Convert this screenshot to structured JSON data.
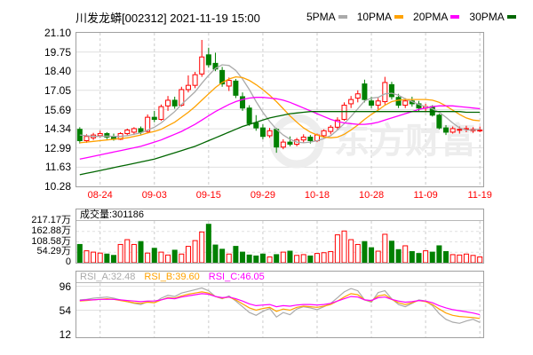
{
  "header": {
    "title": "川发龙蟒[002312] 2021-11-19 15:00",
    "legend": [
      {
        "label": "5PMA",
        "color": "#aaaaaa"
      },
      {
        "label": "10PMA",
        "color": "#ffa200"
      },
      {
        "label": "20PMA",
        "color": "#ff00ff"
      },
      {
        "label": "30PMA",
        "color": "#006600"
      }
    ]
  },
  "volume_panel": {
    "label": "成交量:301186"
  },
  "rsi_panel": {
    "labels": [
      {
        "label": "RSI_A:32.48",
        "color": "#aaaaaa"
      },
      {
        "label": "RSI_B:39.60",
        "color": "#ffa200"
      },
      {
        "label": "RSI_C:46.05",
        "color": "#ff00ff"
      }
    ]
  },
  "watermark": "东方财富",
  "colors": {
    "up": "#ff0000",
    "down": "#008000",
    "grid": "#e0e0e0",
    "vgrid": "#cccccc",
    "border": "#a0a0a0",
    "date_text": "#ff0000",
    "axis_text": "#000000",
    "watermark": "#ededed",
    "background": "#ffffff"
  },
  "chart_data": {
    "type": "candlestick",
    "title": "川发龙蟒[002312] 2021-11-19 15:00",
    "timestamp": "2021-11-19 15:00",
    "x_ticks": {
      "indices": [
        3,
        11,
        19,
        27,
        35,
        43,
        51,
        59
      ],
      "labels": [
        "08-24",
        "09-03",
        "09-15",
        "09-29",
        "10-18",
        "10-28",
        "11-09",
        "11-19"
      ]
    },
    "price_axis": {
      "min": 10.28,
      "max": 21.1,
      "labels": [
        "21.10",
        "19.75",
        "18.40",
        "17.05",
        "15.69",
        "14.34",
        "12.99",
        "11.63",
        "10.28"
      ]
    },
    "candles": [
      [
        14.3,
        14.45,
        13.3,
        13.5
      ],
      [
        13.5,
        13.95,
        13.35,
        13.8
      ],
      [
        13.7,
        14.05,
        13.55,
        13.9
      ],
      [
        13.85,
        14.2,
        13.7,
        14.0
      ],
      [
        14.0,
        14.1,
        13.6,
        13.75
      ],
      [
        13.75,
        14.0,
        13.5,
        13.6
      ],
      [
        13.6,
        14.1,
        13.55,
        14.0
      ],
      [
        14.0,
        14.35,
        13.85,
        14.25
      ],
      [
        14.1,
        14.45,
        13.9,
        14.35
      ],
      [
        14.35,
        14.5,
        13.95,
        14.1
      ],
      [
        14.15,
        15.35,
        14.0,
        15.15
      ],
      [
        15.15,
        15.6,
        14.8,
        15.0
      ],
      [
        15.0,
        16.05,
        14.9,
        15.9
      ],
      [
        15.95,
        16.65,
        15.6,
        16.35
      ],
      [
        16.35,
        16.6,
        15.75,
        15.95
      ],
      [
        16.0,
        17.3,
        15.9,
        17.1
      ],
      [
        17.1,
        18.1,
        16.9,
        17.4
      ],
      [
        17.4,
        18.35,
        17.2,
        18.15
      ],
      [
        18.2,
        20.6,
        18.0,
        19.4
      ],
      [
        19.55,
        20.05,
        18.65,
        18.85
      ],
      [
        18.95,
        19.7,
        18.4,
        18.55
      ],
      [
        18.45,
        18.7,
        17.3,
        17.5
      ],
      [
        17.35,
        17.95,
        17.0,
        17.75
      ],
      [
        17.7,
        17.85,
        16.5,
        16.7
      ],
      [
        16.6,
        16.9,
        15.6,
        15.8
      ],
      [
        15.8,
        16.0,
        14.55,
        14.7
      ],
      [
        14.75,
        15.3,
        14.2,
        14.4
      ],
      [
        14.4,
        14.65,
        13.6,
        13.8
      ],
      [
        13.85,
        14.4,
        13.7,
        14.2
      ],
      [
        14.3,
        14.4,
        12.65,
        13.05
      ],
      [
        13.05,
        13.6,
        12.9,
        13.4
      ],
      [
        13.4,
        13.8,
        13.1,
        13.25
      ],
      [
        13.25,
        13.7,
        13.1,
        13.55
      ],
      [
        13.55,
        13.95,
        13.35,
        13.75
      ],
      [
        13.75,
        13.9,
        13.3,
        13.5
      ],
      [
        13.5,
        14.0,
        13.4,
        13.9
      ],
      [
        13.85,
        14.3,
        13.7,
        14.2
      ],
      [
        14.15,
        14.6,
        13.95,
        14.45
      ],
      [
        14.45,
        15.15,
        14.3,
        14.95
      ],
      [
        15.0,
        16.2,
        14.9,
        16.0
      ],
      [
        16.1,
        16.65,
        15.8,
        16.4
      ],
      [
        16.5,
        17.05,
        16.2,
        16.8
      ],
      [
        17.5,
        17.8,
        16.2,
        16.4
      ],
      [
        16.3,
        16.6,
        15.8,
        16.0
      ],
      [
        16.0,
        16.5,
        15.7,
        16.3
      ],
      [
        16.25,
        18.0,
        16.05,
        17.6
      ],
      [
        17.45,
        17.65,
        16.4,
        16.6
      ],
      [
        16.55,
        16.8,
        15.8,
        16.0
      ],
      [
        16.0,
        16.5,
        15.8,
        16.3
      ],
      [
        16.3,
        16.6,
        15.9,
        16.1
      ],
      [
        16.1,
        16.3,
        15.6,
        15.8
      ],
      [
        15.8,
        16.1,
        15.5,
        15.9
      ],
      [
        15.9,
        16.0,
        15.2,
        15.3
      ],
      [
        15.3,
        15.4,
        14.3,
        14.4
      ],
      [
        14.4,
        14.6,
        13.9,
        14.1
      ],
      [
        14.1,
        14.5,
        14.0,
        14.35
      ],
      [
        14.25,
        14.5,
        14.0,
        14.3
      ],
      [
        14.3,
        14.55,
        14.1,
        14.35
      ],
      [
        14.2,
        14.45,
        14.05,
        14.3
      ],
      [
        14.25,
        14.5,
        14.1,
        14.25
      ]
    ],
    "ma_series": [
      {
        "name": "5PMA",
        "color": "#aaaaaa",
        "values": [
          13.9,
          13.85,
          13.8,
          13.8,
          13.82,
          13.8,
          13.8,
          13.85,
          13.95,
          14.05,
          14.25,
          14.45,
          14.75,
          15.15,
          15.55,
          16.05,
          16.5,
          16.95,
          17.55,
          18.1,
          18.6,
          18.85,
          18.8,
          18.45,
          17.85,
          17.1,
          16.25,
          15.5,
          14.85,
          14.3,
          13.9,
          13.6,
          13.4,
          13.35,
          13.4,
          13.5,
          13.65,
          13.85,
          14.25,
          14.7,
          15.2,
          15.75,
          16.3,
          16.5,
          16.55,
          16.8,
          16.85,
          16.7,
          16.45,
          16.25,
          16.05,
          15.9,
          15.75,
          15.5,
          15.15,
          14.75,
          14.4,
          14.25,
          14.25,
          14.3
        ]
      },
      {
        "name": "10PMA",
        "color": "#ffa200",
        "values": [
          13.35,
          13.4,
          13.45,
          13.5,
          13.55,
          13.6,
          13.65,
          13.7,
          13.8,
          13.9,
          14.05,
          14.15,
          14.3,
          14.55,
          14.8,
          15.15,
          15.5,
          15.9,
          16.35,
          16.8,
          17.25,
          17.6,
          17.85,
          18.0,
          17.95,
          17.75,
          17.45,
          17.1,
          16.7,
          16.25,
          15.75,
          15.25,
          14.8,
          14.4,
          14.1,
          13.9,
          13.75,
          13.7,
          13.75,
          13.95,
          14.25,
          14.6,
          15.0,
          15.35,
          15.65,
          16.0,
          16.25,
          16.35,
          16.4,
          16.4,
          16.4,
          16.4,
          16.35,
          16.2,
          15.95,
          15.65,
          15.35,
          15.1,
          14.95,
          14.9
        ]
      },
      {
        "name": "20PMA",
        "color": "#ff00ff",
        "values": [
          12.2,
          12.3,
          12.4,
          12.5,
          12.6,
          12.7,
          12.8,
          12.9,
          13.0,
          13.1,
          13.25,
          13.4,
          13.55,
          13.75,
          13.95,
          14.15,
          14.4,
          14.65,
          14.95,
          15.25,
          15.55,
          15.8,
          16.05,
          16.25,
          16.4,
          16.5,
          16.55,
          16.55,
          16.5,
          16.45,
          16.35,
          16.2,
          16.0,
          15.8,
          15.6,
          15.4,
          15.2,
          15.0,
          14.85,
          14.75,
          14.7,
          14.65,
          14.65,
          14.7,
          14.8,
          14.95,
          15.1,
          15.25,
          15.4,
          15.55,
          15.7,
          15.8,
          15.9,
          15.95,
          15.95,
          15.95,
          15.9,
          15.85,
          15.8,
          15.75
        ]
      },
      {
        "name": "30PMA",
        "color": "#006600",
        "values": [
          11.1,
          11.2,
          11.3,
          11.4,
          11.5,
          11.6,
          11.7,
          11.8,
          11.9,
          12.0,
          12.1,
          12.2,
          12.35,
          12.5,
          12.65,
          12.8,
          12.95,
          13.1,
          13.3,
          13.5,
          13.7,
          13.9,
          14.1,
          14.3,
          14.5,
          14.65,
          14.8,
          14.95,
          15.1,
          15.2,
          15.3,
          15.4,
          15.45,
          15.5,
          15.55,
          15.55,
          15.55,
          15.55,
          15.55,
          15.55,
          15.55,
          15.55,
          15.55,
          15.55,
          15.55,
          15.55,
          15.55,
          15.55,
          15.55,
          15.55,
          15.55,
          15.55,
          15.55,
          15.55,
          15.55,
          15.55,
          15.55,
          15.5,
          15.5,
          15.5
        ]
      }
    ],
    "volume": {
      "current_label": "成交量:301186",
      "current_value": 301186,
      "axis_max_wan": 217.17,
      "axis_labels": [
        "217.17万",
        "162.88万",
        "108.58万",
        "54.29万",
        "0"
      ],
      "values_wan": [
        95,
        62,
        55,
        50,
        45,
        38,
        95,
        120,
        95,
        110,
        50,
        75,
        55,
        40,
        65,
        45,
        85,
        115,
        160,
        200,
        92,
        70,
        45,
        85,
        55,
        40,
        35,
        45,
        30,
        42,
        55,
        60,
        38,
        42,
        35,
        48,
        52,
        58,
        145,
        165,
        120,
        95,
        110,
        78,
        60,
        148,
        112,
        68,
        88,
        58,
        48,
        62,
        55,
        88,
        58,
        42,
        40,
        45,
        38,
        30
      ]
    },
    "rsi": {
      "axis_labels": [
        "96",
        "54",
        "12"
      ],
      "axis_values": [
        96,
        54,
        12
      ],
      "series": [
        {
          "name": "RSI_A",
          "label": "RSI_A:32.48",
          "last": 32.48,
          "color": "#aaaaaa",
          "values": [
            72,
            73,
            75,
            76,
            77,
            75,
            72,
            69,
            66,
            64,
            69,
            67,
            75,
            80,
            78,
            84,
            87,
            90,
            93,
            88,
            78,
            74,
            79,
            70,
            60,
            50,
            45,
            52,
            57,
            42,
            50,
            46,
            56,
            60,
            58,
            55,
            60,
            66,
            76,
            86,
            92,
            88,
            72,
            68,
            85,
            88,
            74,
            64,
            60,
            66,
            72,
            70,
            62,
            48,
            38,
            33,
            31,
            35,
            38,
            32.48
          ]
        },
        {
          "name": "RSI_B",
          "label": "RSI_B:39.60",
          "last": 39.6,
          "color": "#ffa200",
          "values": [
            70,
            71,
            72,
            73,
            74,
            73,
            71,
            69,
            67,
            66,
            68,
            67,
            72,
            76,
            75,
            79,
            82,
            84,
            86,
            84,
            78,
            75,
            77,
            72,
            65,
            58,
            54,
            57,
            59,
            52,
            56,
            54,
            59,
            61,
            60,
            59,
            61,
            64,
            70,
            77,
            83,
            81,
            72,
            70,
            79,
            81,
            73,
            67,
            64,
            67,
            71,
            69,
            64,
            56,
            49,
            45,
            43,
            42,
            41,
            39.6
          ]
        },
        {
          "name": "RSI_C",
          "label": "RSI_C:46.05",
          "last": 46.05,
          "color": "#ff00ff",
          "values": [
            71,
            72,
            72,
            73,
            73,
            73,
            72,
            71,
            70,
            69,
            70,
            70,
            72,
            75,
            74,
            77,
            79,
            81,
            83,
            82,
            78,
            76,
            77,
            74,
            70,
            65,
            62,
            63,
            64,
            60,
            62,
            61,
            63,
            64,
            64,
            63,
            64,
            66,
            70,
            74,
            78,
            77,
            72,
            71,
            76,
            77,
            73,
            70,
            68,
            69,
            71,
            70,
            67,
            62,
            58,
            55,
            53,
            51,
            49,
            46.05
          ]
        }
      ]
    }
  }
}
